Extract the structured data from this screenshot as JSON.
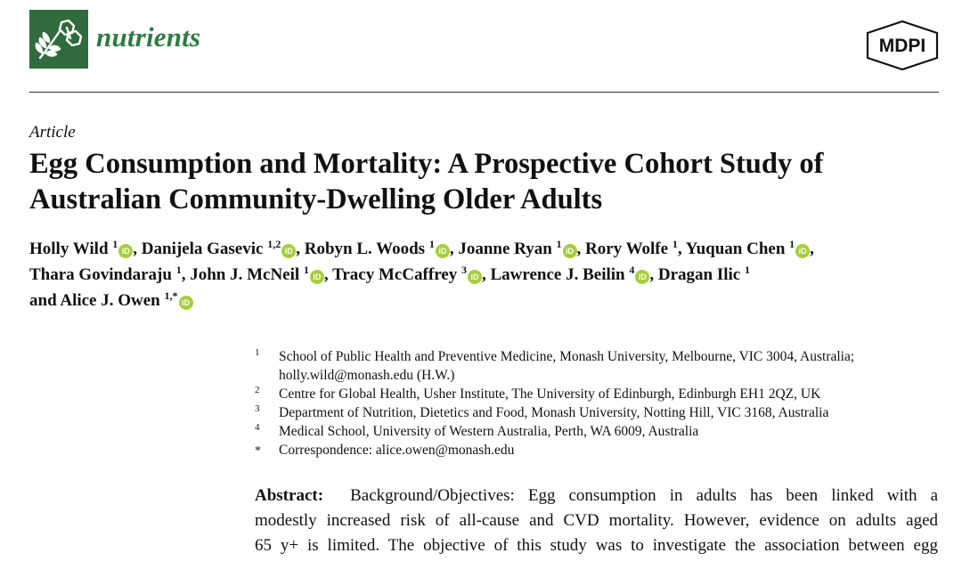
{
  "header": {
    "journal_name": "nutrients",
    "publisher_logo_text": "MDPI",
    "brand_color": "#2e7b44",
    "logo_bg_color": "#2f6b3d"
  },
  "article_type": "Article",
  "title_lines": [
    "Egg Consumption and Mortality: A Prospective Cohort Study of",
    "Australian Community-Dwelling Older Adults"
  ],
  "authors": {
    "row1": [
      {
        "name": "Holly Wild",
        "sup": "1",
        "orcid": true,
        "sep": ", "
      },
      {
        "name": "Danijela Gasevic",
        "sup": "1,2",
        "orcid": true,
        "sep": ", "
      },
      {
        "name": "Robyn L. Woods",
        "sup": "1",
        "orcid": true,
        "sep": ", "
      },
      {
        "name": "Joanne Ryan",
        "sup": "1",
        "orcid": true,
        "sep": ", "
      },
      {
        "name": "Rory Wolfe",
        "sup": "1",
        "orcid": false,
        "sep": ", "
      },
      {
        "name": "Yuquan Chen",
        "sup": "1",
        "orcid": true,
        "sep": ","
      }
    ],
    "row2": [
      {
        "name": "Thara Govindaraju",
        "sup": "1",
        "orcid": false,
        "sep": ", "
      },
      {
        "name": "John J. McNeil",
        "sup": "1",
        "orcid": true,
        "sep": ", "
      },
      {
        "name": "Tracy McCaffrey",
        "sup": "3",
        "orcid": true,
        "sep": ", "
      },
      {
        "name": "Lawrence J. Beilin",
        "sup": "4",
        "orcid": true,
        "sep": ", "
      },
      {
        "name": "Dragan Ilic",
        "sup": "1",
        "orcid": false,
        "sep": ""
      }
    ],
    "row3_prefix": "and ",
    "row3": [
      {
        "name": "Alice J. Owen",
        "sup": "1,*",
        "orcid": true,
        "sep": ""
      }
    ],
    "orcid_icon_text": "iD",
    "orcid_color": "#a6ce39"
  },
  "affiliations": [
    {
      "num": "1",
      "lines": [
        "School of Public Health and Preventive Medicine, Monash University, Melbourne, VIC 3004, Australia;",
        "holly.wild@monash.edu (H.W.)"
      ]
    },
    {
      "num": "2",
      "lines": [
        "Centre for Global Health, Usher Institute, The University of Edinburgh, Edinburgh EH1 2QZ, UK"
      ]
    },
    {
      "num": "3",
      "lines": [
        "Department of Nutrition, Dietetics and Food, Monash University, Notting Hill, VIC 3168, Australia"
      ]
    },
    {
      "num": "4",
      "lines": [
        "Medical School, University of Western Australia, Perth, WA 6009, Australia"
      ]
    },
    {
      "num": "*",
      "lines": [
        "Correspondence: alice.owen@monash.edu"
      ]
    }
  ],
  "abstract": {
    "label": "Abstract:",
    "lines": [
      "Background/Objectives: Egg consumption in adults has been linked with a",
      "modestly increased risk of all-cause and CVD mortality. However, evidence on adults aged",
      "65 y+ is limited. The objective of this study was to investigate the association between egg"
    ]
  }
}
